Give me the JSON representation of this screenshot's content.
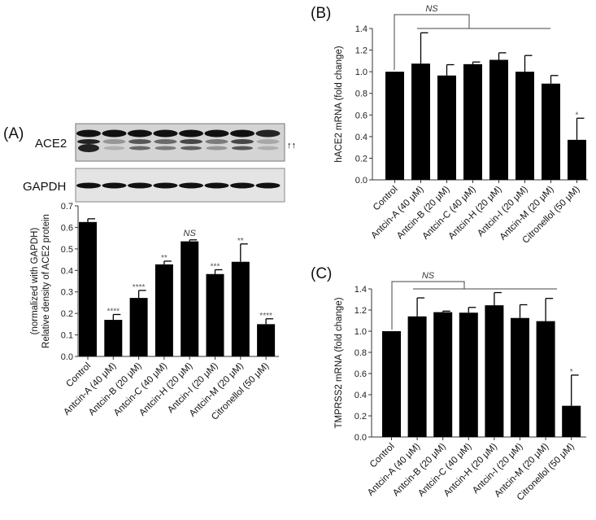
{
  "blot": {
    "panel_label": "(A)",
    "rows": [
      {
        "label": "ACE2",
        "arrows": "↑↑"
      },
      {
        "label": "GAPDH"
      }
    ]
  },
  "chart_data": [
    {
      "type": "bar",
      "panel_label": "(A)",
      "ylabel_lines": [
        "Relative density of ACE2 protein",
        "(normalized with GAPDH)"
      ],
      "categories": [
        "Control",
        "Antcin-A (40 μM)",
        "Antcin-B (20 μM)",
        "Antcin-C (40 μM)",
        "Antcin-H (20 μM)",
        "Antcin-I (20 μM)",
        "Antcin-M (20 μM)",
        "Citronellol (50 μM)"
      ],
      "values": [
        0.625,
        0.17,
        0.272,
        0.428,
        0.535,
        0.383,
        0.44,
        0.15
      ],
      "errors": [
        0.015,
        0.025,
        0.035,
        0.015,
        0.007,
        0.02,
        0.083,
        0.025
      ],
      "annotations": [
        "",
        "****",
        "****",
        "**",
        "NS",
        "***",
        "**",
        "****"
      ],
      "ylim": [
        0,
        0.7
      ],
      "yticks": [
        "0.0",
        "0.1",
        "0.2",
        "0.3",
        "0.4",
        "0.5",
        "0.6",
        "0.7"
      ],
      "color": "#000000"
    },
    {
      "type": "bar",
      "panel_label": "(B)",
      "ylabel_lines": [
        "hACE2 mRNA (fold change)"
      ],
      "categories": [
        "Control",
        "Antcin-A (40 μM)",
        "Antcin-B (20 μM)",
        "Antcin-C (40 μM)",
        "Antcin-H (20 μM)",
        "Antcin-I (20 μM)",
        "Antcin-M (20 μM)",
        "Citronellol (50 μM)"
      ],
      "values": [
        1.0,
        1.075,
        0.965,
        1.07,
        1.11,
        1.0,
        0.89,
        0.37
      ],
      "errors": [
        0,
        0.285,
        0.1,
        0.02,
        0.065,
        0.15,
        0.075,
        0.2
      ],
      "annotations": [
        "",
        "",
        "",
        "",
        "",
        "",
        "",
        "*"
      ],
      "bracket_label": "NS",
      "ylim": [
        0,
        1.4
      ],
      "yticks": [
        "0.0",
        "0.2",
        "0.4",
        "0.6",
        "0.8",
        "1.0",
        "1.2",
        "1.4"
      ],
      "color": "#000000"
    },
    {
      "type": "bar",
      "panel_label": "(C)",
      "ylabel_lines": [
        "TMPRSS2 mRNA (fold change)"
      ],
      "categories": [
        "Control",
        "Antcin-A (40 μM)",
        "Antcin-B (20 μM)",
        "Antcin-C (40 μM)",
        "Antcin-H (20 μM)",
        "Antcin-I (20 μM)",
        "Antcin-M (20 μM)",
        "Citronellol (50 μM)"
      ],
      "values": [
        1.0,
        1.14,
        1.18,
        1.175,
        1.245,
        1.125,
        1.095,
        0.295
      ],
      "errors": [
        0,
        0.175,
        0.01,
        0.05,
        0.12,
        0.125,
        0.215,
        0.29
      ],
      "annotations": [
        "",
        "",
        "",
        "",
        "",
        "",
        "",
        "*"
      ],
      "bracket_label": "NS",
      "ylim": [
        0,
        1.4
      ],
      "yticks": [
        "0.0",
        "0.2",
        "0.4",
        "0.6",
        "0.8",
        "1.0",
        "1.2",
        "1.4"
      ],
      "color": "#000000"
    }
  ]
}
